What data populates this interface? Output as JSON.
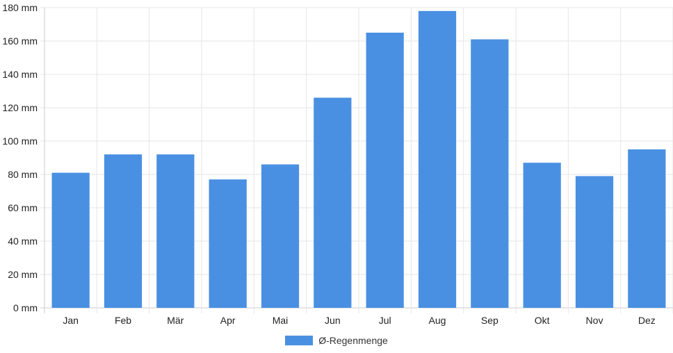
{
  "chart_data": {
    "type": "bar",
    "categories": [
      "Jan",
      "Feb",
      "Mär",
      "Apr",
      "Mai",
      "Jun",
      "Jul",
      "Aug",
      "Sep",
      "Okt",
      "Nov",
      "Dez"
    ],
    "series": [
      {
        "name": "Ø-Regenmenge",
        "values": [
          81,
          92,
          92,
          77,
          86,
          126,
          165,
          178,
          161,
          87,
          79,
          95
        ]
      }
    ],
    "y_ticks": [
      "0 mm",
      "20 mm",
      "40 mm",
      "60 mm",
      "80 mm",
      "100 mm",
      "120 mm",
      "140 mm",
      "160 mm",
      "180 mm"
    ],
    "ylim": [
      0,
      180
    ],
    "grid": true,
    "legend_position": "bottom",
    "colors": {
      "bar": "#4a90e2",
      "grid": "#e6e6e6",
      "axis": "#cccccc"
    }
  }
}
